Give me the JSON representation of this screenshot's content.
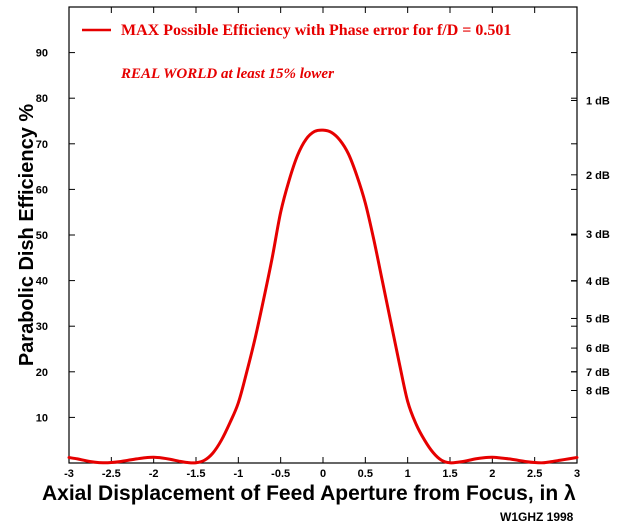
{
  "chart_data": {
    "type": "line",
    "title": "",
    "xlabel": "Axial Displacement of Feed Aperture from Focus, in λ",
    "ylabel": "Parabolic Dish Efficiency %",
    "xlim": [
      -3,
      3
    ],
    "ylim": [
      0,
      100
    ],
    "x_ticks": [
      -3,
      -2.5,
      -2,
      -1.5,
      -1,
      -0.5,
      0,
      0.5,
      1,
      1.5,
      2,
      2.5,
      3
    ],
    "x_tick_labels": [
      "-3",
      "-2.5",
      "-2",
      "-1.5",
      "-1",
      "-0.5",
      "0",
      "0.5",
      "1",
      "1.5",
      "2",
      "2.5",
      "3"
    ],
    "y_ticks": [
      10,
      20,
      30,
      40,
      50,
      60,
      70,
      80,
      90
    ],
    "y_tick_labels": [
      "10",
      "20",
      "30",
      "40",
      "50",
      "60",
      "70",
      "80",
      "90"
    ],
    "secondary_y_ticks": [
      {
        "label": "1 dB",
        "value": 79.5
      },
      {
        "label": "2 dB",
        "value": 63.2
      },
      {
        "label": "3 dB",
        "value": 50.2
      },
      {
        "label": "4 dB",
        "value": 39.9
      },
      {
        "label": "5 dB",
        "value": 31.7
      },
      {
        "label": "6 dB",
        "value": 25.2
      },
      {
        "label": "7 dB",
        "value": 20.0
      },
      {
        "label": "8 dB",
        "value": 15.9
      }
    ],
    "series": [
      {
        "name": "MAX Possible Efficiency with Phase error for f/D = 0.501",
        "color": "#e60000",
        "x": [
          -3,
          -2.9,
          -2.8,
          -2.7,
          -2.6,
          -2.5,
          -2.4,
          -2.3,
          -2.2,
          -2.1,
          -2,
          -1.9,
          -1.8,
          -1.7,
          -1.6,
          -1.5,
          -1.4,
          -1.3,
          -1.2,
          -1.1,
          -1,
          -0.9,
          -0.8,
          -0.7,
          -0.6,
          -0.5,
          -0.4,
          -0.3,
          -0.2,
          -0.1,
          0,
          0.1,
          0.2,
          0.3,
          0.4,
          0.5,
          0.6,
          0.7,
          0.8,
          0.9,
          1,
          1.1,
          1.2,
          1.3,
          1.4,
          1.5,
          1.6,
          1.7,
          1.8,
          1.9,
          2,
          2.1,
          2.2,
          2.3,
          2.4,
          2.5,
          2.6,
          2.7,
          2.8,
          2.9,
          3
        ],
        "y": [
          1.2,
          0.9,
          0.5,
          0.2,
          0.05,
          0.1,
          0.3,
          0.6,
          0.9,
          1.15,
          1.25,
          1.1,
          0.8,
          0.4,
          0.1,
          0.05,
          0.6,
          2.2,
          5.0,
          8.8,
          13.2,
          20.0,
          27.5,
          36.0,
          45.0,
          55.0,
          62.0,
          67.5,
          71.0,
          72.7,
          73.0,
          72.5,
          70.8,
          67.8,
          63.0,
          57.0,
          49.0,
          40.0,
          31.0,
          22.0,
          13.5,
          8.5,
          5.0,
          2.3,
          0.6,
          0.05,
          0.2,
          0.5,
          0.9,
          1.15,
          1.25,
          1.1,
          0.9,
          0.6,
          0.3,
          0.1,
          0.05,
          0.3,
          0.6,
          0.9,
          1.2
        ]
      }
    ],
    "legend": {
      "position": "top-left",
      "label": "MAX Possible Efficiency with Phase error for f/D = 0.501"
    },
    "annotations": [
      "REAL WORLD at least 15% lower"
    ],
    "credit": "W1GHZ 1998",
    "grid": false
  }
}
